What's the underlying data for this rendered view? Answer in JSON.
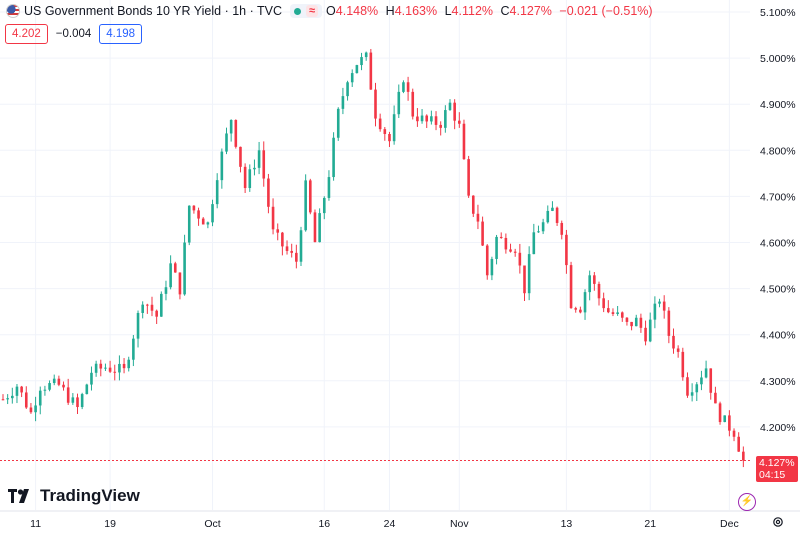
{
  "header": {
    "title": "US Government Bonds 10 YR Yield · 1h · TVC",
    "approx_symbol": "≈",
    "ohlc": [
      {
        "key": "O",
        "value": "4.148%"
      },
      {
        "key": "H",
        "value": "4.163%"
      },
      {
        "key": "L",
        "value": "4.112%"
      },
      {
        "key": "C",
        "value": "4.127%"
      },
      {
        "key": "",
        "value": "−0.021 (−0.51%)"
      }
    ],
    "sell_price": "4.202",
    "spread": "−0.004",
    "buy_price": "4.198"
  },
  "logo_text": "TradingView",
  "last_price_label": {
    "price": "4.127%",
    "countdown": "04:15"
  },
  "colors": {
    "up": "#22ab94",
    "down": "#f23645",
    "grid": "#f0f3fa",
    "text": "#131722"
  },
  "chart_data": {
    "type": "line",
    "style": "candlestick",
    "x_tick_labels": [
      "11",
      "19",
      "Oct",
      "16",
      "24",
      "Nov",
      "13",
      "21",
      "Dec"
    ],
    "y_tick_labels": [
      "5.100%",
      "5.000%",
      "4.900%",
      "4.800%",
      "4.700%",
      "4.600%",
      "4.500%",
      "4.400%",
      "4.300%",
      "4.200%"
    ],
    "ylim": [
      4.08,
      5.12
    ],
    "x_count": 160,
    "x_tick_index": [
      7,
      23,
      45,
      69,
      83,
      98,
      121,
      139,
      156
    ],
    "last_value": 4.127,
    "grid": true,
    "keypoints": [
      [
        0,
        4.26
      ],
      [
        3,
        4.29
      ],
      [
        6,
        4.23
      ],
      [
        8,
        4.29
      ],
      [
        12,
        4.29
      ],
      [
        16,
        4.24
      ],
      [
        19,
        4.32
      ],
      [
        22,
        4.33
      ],
      [
        26,
        4.32
      ],
      [
        30,
        4.48
      ],
      [
        33,
        4.44
      ],
      [
        36,
        4.55
      ],
      [
        38,
        4.5
      ],
      [
        40,
        4.68
      ],
      [
        44,
        4.64
      ],
      [
        46,
        4.75
      ],
      [
        49,
        4.87
      ],
      [
        52,
        4.72
      ],
      [
        55,
        4.8
      ],
      [
        58,
        4.62
      ],
      [
        61,
        4.58
      ],
      [
        63,
        4.56
      ],
      [
        65,
        4.72
      ],
      [
        67,
        4.6
      ],
      [
        70,
        4.75
      ],
      [
        72,
        4.88
      ],
      [
        74,
        4.96
      ],
      [
        76,
        4.99
      ],
      [
        78,
        5.0
      ],
      [
        80,
        4.88
      ],
      [
        83,
        4.82
      ],
      [
        86,
        4.96
      ],
      [
        88,
        4.88
      ],
      [
        91,
        4.86
      ],
      [
        94,
        4.86
      ],
      [
        96,
        4.9
      ],
      [
        98,
        4.85
      ],
      [
        100,
        4.69
      ],
      [
        102,
        4.65
      ],
      [
        104,
        4.53
      ],
      [
        106,
        4.61
      ],
      [
        108,
        4.6
      ],
      [
        110,
        4.59
      ],
      [
        112,
        4.5
      ],
      [
        114,
        4.62
      ],
      [
        116,
        4.64
      ],
      [
        118,
        4.67
      ],
      [
        120,
        4.63
      ],
      [
        122,
        4.47
      ],
      [
        124,
        4.46
      ],
      [
        126,
        4.53
      ],
      [
        128,
        4.48
      ],
      [
        130,
        4.45
      ],
      [
        132,
        4.44
      ],
      [
        134,
        4.42
      ],
      [
        136,
        4.43
      ],
      [
        138,
        4.4
      ],
      [
        141,
        4.48
      ],
      [
        143,
        4.4
      ],
      [
        145,
        4.36
      ],
      [
        147,
        4.28
      ],
      [
        149,
        4.3
      ],
      [
        151,
        4.33
      ],
      [
        153,
        4.24
      ],
      [
        155,
        4.21
      ],
      [
        157,
        4.19
      ],
      [
        159,
        4.127
      ]
    ]
  }
}
